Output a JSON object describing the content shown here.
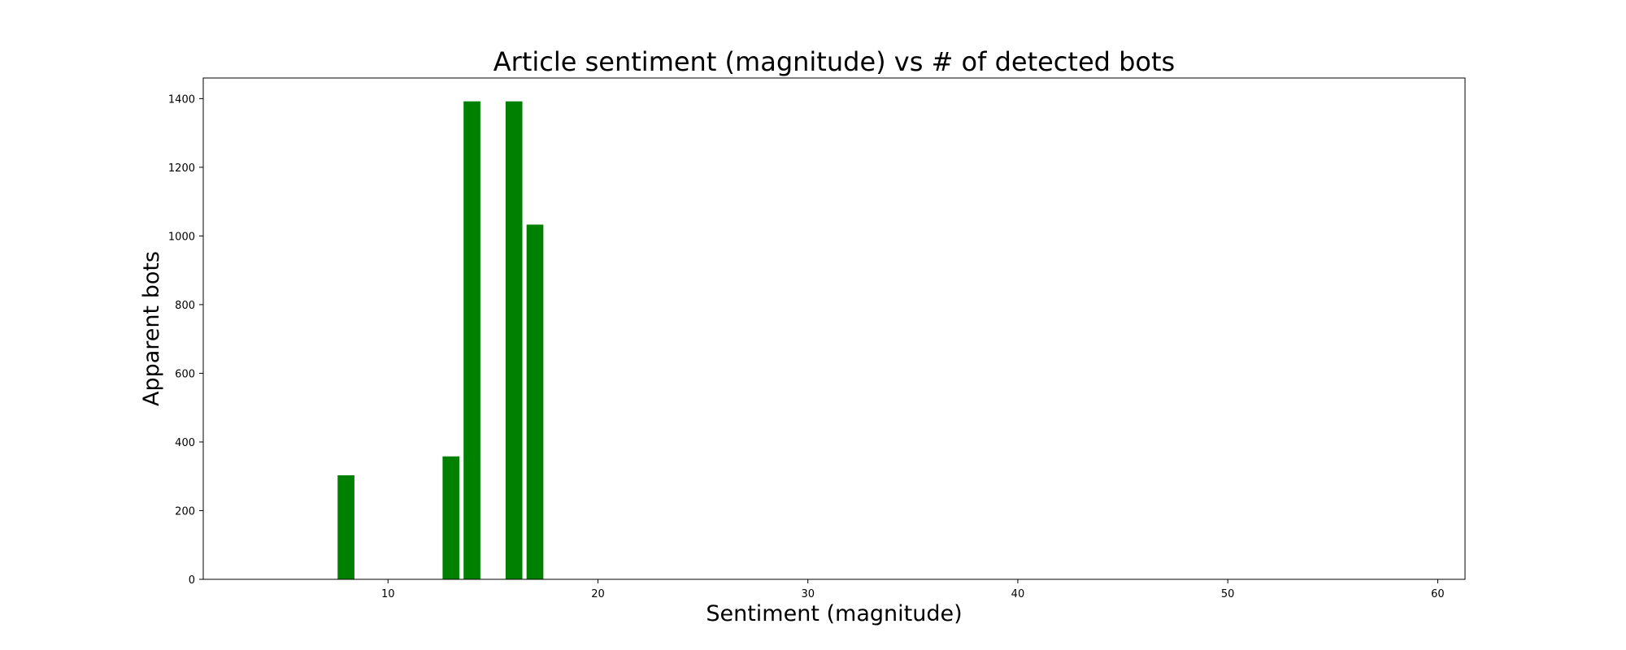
{
  "chart_data": {
    "type": "bar",
    "title": "Article sentiment (magnitude) vs # of detected bots",
    "xlabel": "Sentiment (magnitude)",
    "ylabel": "Apparent bots",
    "xlim": [
      1.2,
      61.3
    ],
    "ylim": [
      0,
      1460
    ],
    "xticks": [
      10,
      20,
      30,
      40,
      50,
      60
    ],
    "yticks": [
      0,
      200,
      400,
      600,
      800,
      1000,
      1200,
      1400
    ],
    "bar_width": 0.8,
    "color": "#008000",
    "grid": false,
    "legend": "none",
    "x": [
      8,
      13,
      14,
      16,
      17
    ],
    "values": [
      303,
      358,
      1392,
      1392,
      1033
    ]
  }
}
